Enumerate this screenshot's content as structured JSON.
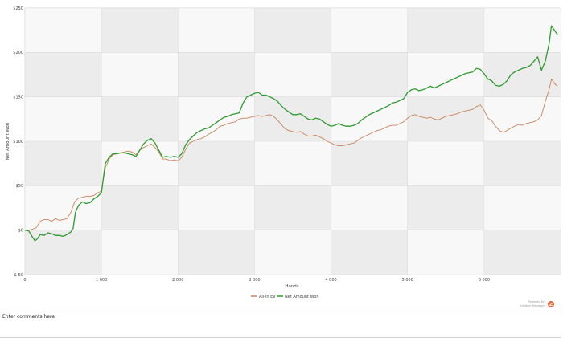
{
  "chart_data": {
    "type": "line",
    "xlabel": "Hands",
    "ylabel": "Net Amount Won",
    "xlim": [
      0,
      7000
    ],
    "ylim": [
      -50,
      250
    ],
    "x_ticks": [
      0,
      1000,
      2000,
      3000,
      4000,
      5000,
      6000
    ],
    "x_tick_labels": [
      "0",
      "1 000",
      "2 000",
      "3 000",
      "4 000",
      "5 000",
      "6 000"
    ],
    "y_ticks": [
      -50,
      0,
      50,
      100,
      150,
      200,
      250
    ],
    "y_tick_labels": [
      "$-50",
      "$0",
      "$50",
      "$100",
      "$150",
      "$200",
      "$250"
    ],
    "grid": true,
    "legend_position": "bottom-center",
    "series": [
      {
        "name": "All-in EV",
        "color": "#c8845a",
        "points": [
          [
            0,
            0
          ],
          [
            50,
            0
          ],
          [
            100,
            1
          ],
          [
            150,
            3
          ],
          [
            200,
            10
          ],
          [
            250,
            12
          ],
          [
            300,
            12
          ],
          [
            350,
            10
          ],
          [
            400,
            13
          ],
          [
            450,
            11
          ],
          [
            500,
            12
          ],
          [
            550,
            13
          ],
          [
            600,
            20
          ],
          [
            650,
            32
          ],
          [
            700,
            36
          ],
          [
            750,
            37
          ],
          [
            800,
            38
          ],
          [
            850,
            38
          ],
          [
            900,
            39
          ],
          [
            950,
            42
          ],
          [
            1000,
            44
          ],
          [
            1050,
            70
          ],
          [
            1100,
            80
          ],
          [
            1150,
            85
          ],
          [
            1200,
            86
          ],
          [
            1250,
            87
          ],
          [
            1300,
            88
          ],
          [
            1350,
            89
          ],
          [
            1400,
            88
          ],
          [
            1450,
            85
          ],
          [
            1500,
            90
          ],
          [
            1550,
            93
          ],
          [
            1600,
            95
          ],
          [
            1650,
            97
          ],
          [
            1700,
            93
          ],
          [
            1750,
            88
          ],
          [
            1800,
            80
          ],
          [
            1850,
            80
          ],
          [
            1900,
            78
          ],
          [
            1950,
            79
          ],
          [
            2000,
            78
          ],
          [
            2050,
            82
          ],
          [
            2100,
            91
          ],
          [
            2150,
            98
          ],
          [
            2200,
            100
          ],
          [
            2250,
            102
          ],
          [
            2300,
            103
          ],
          [
            2350,
            105
          ],
          [
            2400,
            108
          ],
          [
            2450,
            110
          ],
          [
            2500,
            113
          ],
          [
            2550,
            117
          ],
          [
            2600,
            118
          ],
          [
            2650,
            120
          ],
          [
            2700,
            121
          ],
          [
            2750,
            122
          ],
          [
            2800,
            125
          ],
          [
            2850,
            126
          ],
          [
            2900,
            126
          ],
          [
            2950,
            127
          ],
          [
            3000,
            128
          ],
          [
            3050,
            129
          ],
          [
            3100,
            128
          ],
          [
            3150,
            129
          ],
          [
            3200,
            130
          ],
          [
            3250,
            128
          ],
          [
            3300,
            124
          ],
          [
            3350,
            119
          ],
          [
            3400,
            114
          ],
          [
            3450,
            112
          ],
          [
            3500,
            111
          ],
          [
            3550,
            110
          ],
          [
            3600,
            111
          ],
          [
            3650,
            108
          ],
          [
            3700,
            106
          ],
          [
            3750,
            106
          ],
          [
            3800,
            107
          ],
          [
            3850,
            105
          ],
          [
            3900,
            103
          ],
          [
            3950,
            100
          ],
          [
            4000,
            98
          ],
          [
            4050,
            96
          ],
          [
            4100,
            95
          ],
          [
            4150,
            95
          ],
          [
            4200,
            96
          ],
          [
            4250,
            97
          ],
          [
            4300,
            98
          ],
          [
            4350,
            101
          ],
          [
            4400,
            104
          ],
          [
            4450,
            106
          ],
          [
            4500,
            108
          ],
          [
            4550,
            110
          ],
          [
            4600,
            112
          ],
          [
            4650,
            113
          ],
          [
            4700,
            115
          ],
          [
            4750,
            117
          ],
          [
            4800,
            118
          ],
          [
            4850,
            118
          ],
          [
            4900,
            120
          ],
          [
            4950,
            122
          ],
          [
            5000,
            126
          ],
          [
            5050,
            129
          ],
          [
            5100,
            130
          ],
          [
            5150,
            128
          ],
          [
            5200,
            127
          ],
          [
            5250,
            126
          ],
          [
            5300,
            127
          ],
          [
            5350,
            125
          ],
          [
            5400,
            124
          ],
          [
            5450,
            126
          ],
          [
            5500,
            128
          ],
          [
            5550,
            129
          ],
          [
            5600,
            130
          ],
          [
            5650,
            131
          ],
          [
            5700,
            133
          ],
          [
            5750,
            134
          ],
          [
            5800,
            135
          ],
          [
            5850,
            136
          ],
          [
            5900,
            139
          ],
          [
            5950,
            141
          ],
          [
            6000,
            135
          ],
          [
            6050,
            126
          ],
          [
            6100,
            123
          ],
          [
            6150,
            117
          ],
          [
            6200,
            112
          ],
          [
            6250,
            110
          ],
          [
            6300,
            112
          ],
          [
            6350,
            115
          ],
          [
            6400,
            117
          ],
          [
            6450,
            119
          ],
          [
            6500,
            118
          ],
          [
            6550,
            120
          ],
          [
            6600,
            121
          ],
          [
            6650,
            122
          ],
          [
            6700,
            124
          ],
          [
            6750,
            129
          ],
          [
            6800,
            145
          ],
          [
            6850,
            158
          ],
          [
            6880,
            170
          ],
          [
            6920,
            165
          ],
          [
            6960,
            162
          ]
        ]
      },
      {
        "name": "Net Amount Won",
        "color": "#2f9a2f",
        "points": [
          [
            0,
            0
          ],
          [
            50,
            -1
          ],
          [
            100,
            -8
          ],
          [
            130,
            -12
          ],
          [
            160,
            -10
          ],
          [
            200,
            -5
          ],
          [
            250,
            -6
          ],
          [
            300,
            -3
          ],
          [
            350,
            -4
          ],
          [
            400,
            -6
          ],
          [
            450,
            -6
          ],
          [
            500,
            -7
          ],
          [
            550,
            -5
          ],
          [
            600,
            -2
          ],
          [
            630,
            2
          ],
          [
            660,
            20
          ],
          [
            700,
            28
          ],
          [
            750,
            32
          ],
          [
            800,
            30
          ],
          [
            850,
            31
          ],
          [
            900,
            35
          ],
          [
            950,
            38
          ],
          [
            1000,
            42
          ],
          [
            1050,
            75
          ],
          [
            1100,
            82
          ],
          [
            1150,
            86
          ],
          [
            1200,
            86
          ],
          [
            1250,
            87
          ],
          [
            1300,
            87
          ],
          [
            1350,
            86
          ],
          [
            1400,
            85
          ],
          [
            1450,
            83
          ],
          [
            1500,
            90
          ],
          [
            1550,
            97
          ],
          [
            1600,
            101
          ],
          [
            1650,
            103
          ],
          [
            1700,
            98
          ],
          [
            1750,
            90
          ],
          [
            1800,
            82
          ],
          [
            1850,
            83
          ],
          [
            1900,
            82
          ],
          [
            1950,
            83
          ],
          [
            2000,
            82
          ],
          [
            2050,
            86
          ],
          [
            2100,
            96
          ],
          [
            2150,
            102
          ],
          [
            2200,
            106
          ],
          [
            2250,
            110
          ],
          [
            2300,
            112
          ],
          [
            2350,
            114
          ],
          [
            2400,
            115
          ],
          [
            2450,
            118
          ],
          [
            2500,
            121
          ],
          [
            2550,
            124
          ],
          [
            2600,
            127
          ],
          [
            2650,
            128
          ],
          [
            2700,
            130
          ],
          [
            2750,
            131
          ],
          [
            2800,
            132
          ],
          [
            2850,
            143
          ],
          [
            2900,
            150
          ],
          [
            2950,
            152
          ],
          [
            3000,
            154
          ],
          [
            3050,
            155
          ],
          [
            3100,
            152
          ],
          [
            3150,
            152
          ],
          [
            3200,
            150
          ],
          [
            3250,
            148
          ],
          [
            3300,
            145
          ],
          [
            3350,
            140
          ],
          [
            3400,
            136
          ],
          [
            3450,
            133
          ],
          [
            3500,
            130
          ],
          [
            3550,
            130
          ],
          [
            3600,
            131
          ],
          [
            3650,
            128
          ],
          [
            3700,
            125
          ],
          [
            3750,
            124
          ],
          [
            3800,
            126
          ],
          [
            3850,
            125
          ],
          [
            3900,
            122
          ],
          [
            3950,
            119
          ],
          [
            4000,
            117
          ],
          [
            4050,
            118
          ],
          [
            4100,
            120
          ],
          [
            4150,
            118
          ],
          [
            4200,
            117
          ],
          [
            4250,
            117
          ],
          [
            4300,
            118
          ],
          [
            4350,
            120
          ],
          [
            4400,
            124
          ],
          [
            4450,
            127
          ],
          [
            4500,
            130
          ],
          [
            4550,
            132
          ],
          [
            4600,
            134
          ],
          [
            4650,
            136
          ],
          [
            4700,
            138
          ],
          [
            4750,
            140
          ],
          [
            4800,
            143
          ],
          [
            4850,
            144
          ],
          [
            4900,
            146
          ],
          [
            4950,
            148
          ],
          [
            5000,
            155
          ],
          [
            5050,
            158
          ],
          [
            5100,
            159
          ],
          [
            5150,
            157
          ],
          [
            5200,
            158
          ],
          [
            5250,
            160
          ],
          [
            5300,
            162
          ],
          [
            5350,
            160
          ],
          [
            5400,
            162
          ],
          [
            5450,
            164
          ],
          [
            5500,
            166
          ],
          [
            5550,
            168
          ],
          [
            5600,
            170
          ],
          [
            5650,
            172
          ],
          [
            5700,
            174
          ],
          [
            5750,
            176
          ],
          [
            5800,
            177
          ],
          [
            5850,
            178
          ],
          [
            5900,
            182
          ],
          [
            5950,
            181
          ],
          [
            6000,
            176
          ],
          [
            6050,
            170
          ],
          [
            6100,
            168
          ],
          [
            6150,
            163
          ],
          [
            6200,
            162
          ],
          [
            6250,
            164
          ],
          [
            6300,
            168
          ],
          [
            6350,
            175
          ],
          [
            6400,
            178
          ],
          [
            6450,
            180
          ],
          [
            6500,
            182
          ],
          [
            6550,
            183
          ],
          [
            6600,
            185
          ],
          [
            6650,
            190
          ],
          [
            6700,
            195
          ],
          [
            6750,
            180
          ],
          [
            6800,
            190
          ],
          [
            6850,
            210
          ],
          [
            6880,
            230
          ],
          [
            6920,
            225
          ],
          [
            6960,
            220
          ]
        ]
      }
    ]
  },
  "powered_by": "Powered by",
  "powered_by_brand": "Holdem Manager",
  "comments": {
    "label": "Enter comments here"
  }
}
